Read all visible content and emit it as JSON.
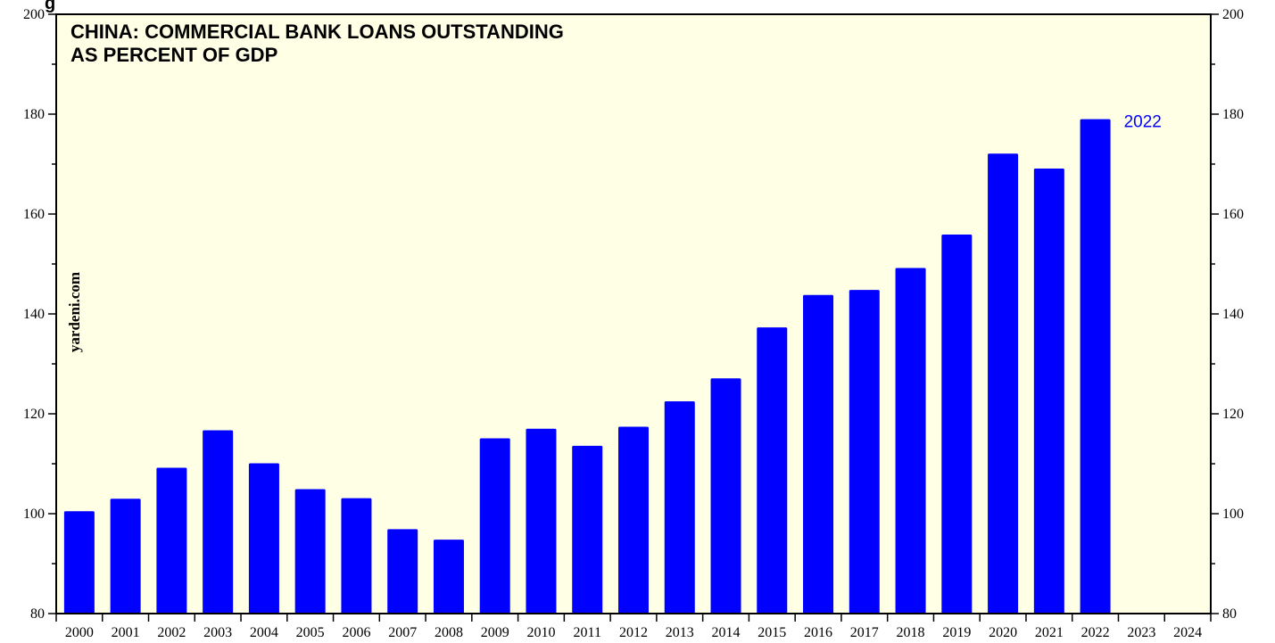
{
  "chart_data": {
    "type": "bar",
    "title_lines": [
      "CHINA: COMMERCIAL BANK LOANS OUTSTANDING",
      "AS PERCENT OF GDP"
    ],
    "watermark": "yardeni.com",
    "corner_fragment": "g",
    "categories": [
      "2000",
      "2001",
      "2002",
      "2003",
      "2004",
      "2005",
      "2006",
      "2007",
      "2008",
      "2009",
      "2010",
      "2011",
      "2012",
      "2013",
      "2014",
      "2015",
      "2016",
      "2017",
      "2018",
      "2019",
      "2020",
      "2021",
      "2022",
      "2023",
      "2024"
    ],
    "values": [
      100.5,
      103.0,
      109.2,
      116.7,
      110.1,
      104.9,
      103.1,
      96.9,
      94.8,
      115.1,
      117.0,
      113.6,
      117.4,
      122.5,
      127.1,
      137.3,
      143.8,
      144.8,
      149.2,
      155.9,
      172.1,
      169.1,
      179.0,
      null,
      null
    ],
    "annotation": {
      "text": "2022",
      "category": "2022"
    },
    "ylim": [
      80,
      200
    ],
    "yticks": [
      80,
      100,
      120,
      140,
      160,
      180,
      200
    ],
    "y_minor_step": 10,
    "grid": false,
    "colors": {
      "bar": "#0000ff",
      "annotation": "#0000ff",
      "plot_background": "#ffffe6",
      "axis": "#000000"
    }
  }
}
